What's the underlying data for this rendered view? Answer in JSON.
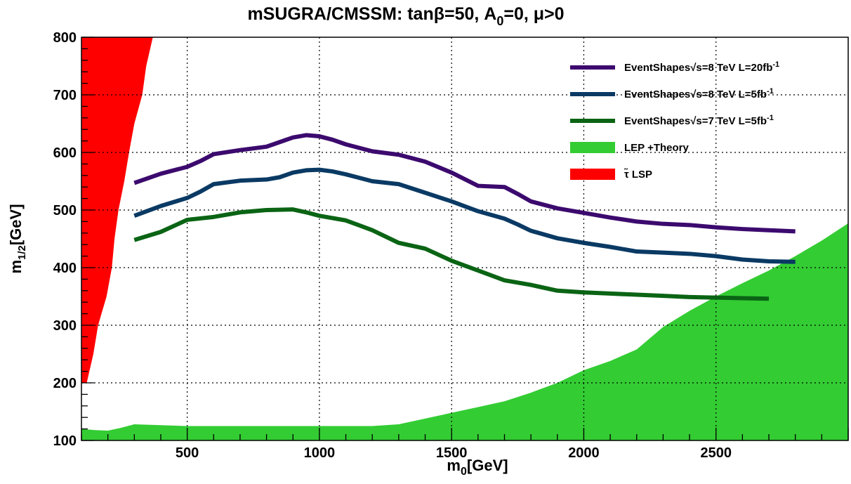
{
  "chart_data": {
    "type": "line",
    "title": "mSUGRA/CMSSM: tanβ=50, A₀=0, μ>0",
    "xlabel": "m₀[GeV]",
    "ylabel": "m₁/₂[GeV]",
    "xlim": [
      100,
      3000
    ],
    "ylim": [
      100,
      800
    ],
    "x_ticks": [
      500,
      1000,
      1500,
      2000,
      2500
    ],
    "y_ticks": [
      100,
      200,
      300,
      400,
      500,
      600,
      700,
      800
    ],
    "grid": true,
    "legend_position": "top-right",
    "series": [
      {
        "name": "EventShapes√s=8 TeV L=20fb⁻¹",
        "color": "#3c0a6e",
        "x": [
          300,
          400,
          500,
          550,
          600,
          700,
          800,
          850,
          900,
          950,
          1000,
          1050,
          1100,
          1200,
          1300,
          1400,
          1500,
          1600,
          1700,
          1750,
          1800,
          1900,
          2000,
          2100,
          2200,
          2300,
          2400,
          2500,
          2600,
          2700,
          2800
        ],
        "values": [
          547,
          563,
          575,
          585,
          597,
          604,
          610,
          618,
          626,
          630,
          628,
          622,
          614,
          602,
          596,
          584,
          565,
          542,
          540,
          528,
          515,
          503,
          495,
          487,
          480,
          476,
          474,
          470,
          467,
          465,
          463
        ]
      },
      {
        "name": "EventShapes√s=8 TeV L=5fb⁻¹",
        "color": "#0a3a64",
        "x": [
          300,
          400,
          500,
          550,
          600,
          700,
          800,
          850,
          900,
          950,
          1000,
          1050,
          1100,
          1200,
          1300,
          1400,
          1500,
          1600,
          1700,
          1750,
          1800,
          1900,
          2000,
          2100,
          2200,
          2300,
          2400,
          2500,
          2600,
          2700,
          2800
        ],
        "values": [
          490,
          507,
          521,
          532,
          545,
          551,
          553,
          557,
          565,
          569,
          570,
          567,
          562,
          550,
          545,
          530,
          515,
          498,
          485,
          475,
          464,
          451,
          443,
          436,
          428,
          426,
          424,
          420,
          414,
          411,
          410
        ]
      },
      {
        "name": "EventShapes√s=7 TeV L=5fb⁻¹",
        "color": "#0a6414",
        "x": [
          300,
          400,
          500,
          600,
          700,
          800,
          900,
          950,
          1000,
          1100,
          1200,
          1300,
          1400,
          1500,
          1600,
          1700,
          1800,
          1900,
          2000,
          2100,
          2200,
          2300,
          2400,
          2500,
          2600,
          2700
        ],
        "values": [
          448,
          462,
          483,
          488,
          496,
          500,
          501,
          496,
          490,
          482,
          465,
          443,
          433,
          412,
          395,
          378,
          370,
          360,
          357,
          355,
          353,
          351,
          349,
          348,
          347,
          346
        ]
      }
    ],
    "areas": [
      {
        "name": "LEP +Theory",
        "color": "#33cc33",
        "x": [
          100,
          150,
          200,
          250,
          300,
          500,
          1000,
          1200,
          1300,
          1400,
          1500,
          1600,
          1700,
          1800,
          1900,
          2000,
          2100,
          2200,
          2300,
          2400,
          2500,
          2600,
          2700,
          2800,
          2900,
          3000
        ],
        "upper": [
          120,
          118,
          117,
          122,
          128,
          125,
          125,
          125,
          128,
          138,
          148,
          158,
          168,
          183,
          200,
          222,
          238,
          258,
          297,
          325,
          350,
          373,
          395,
          420,
          447,
          477
        ]
      },
      {
        "name": "τ̃ LSP",
        "color": "#ff0000",
        "y": [
          200,
          250,
          300,
          350,
          400,
          450,
          500,
          550,
          600,
          650,
          700,
          750,
          800
        ],
        "left": [
          100,
          100,
          100,
          100,
          100,
          100,
          100,
          100,
          100,
          100,
          100,
          100,
          100
        ],
        "right": [
          120,
          145,
          163,
          195,
          215,
          225,
          240,
          262,
          280,
          300,
          330,
          345,
          370
        ]
      }
    ]
  }
}
